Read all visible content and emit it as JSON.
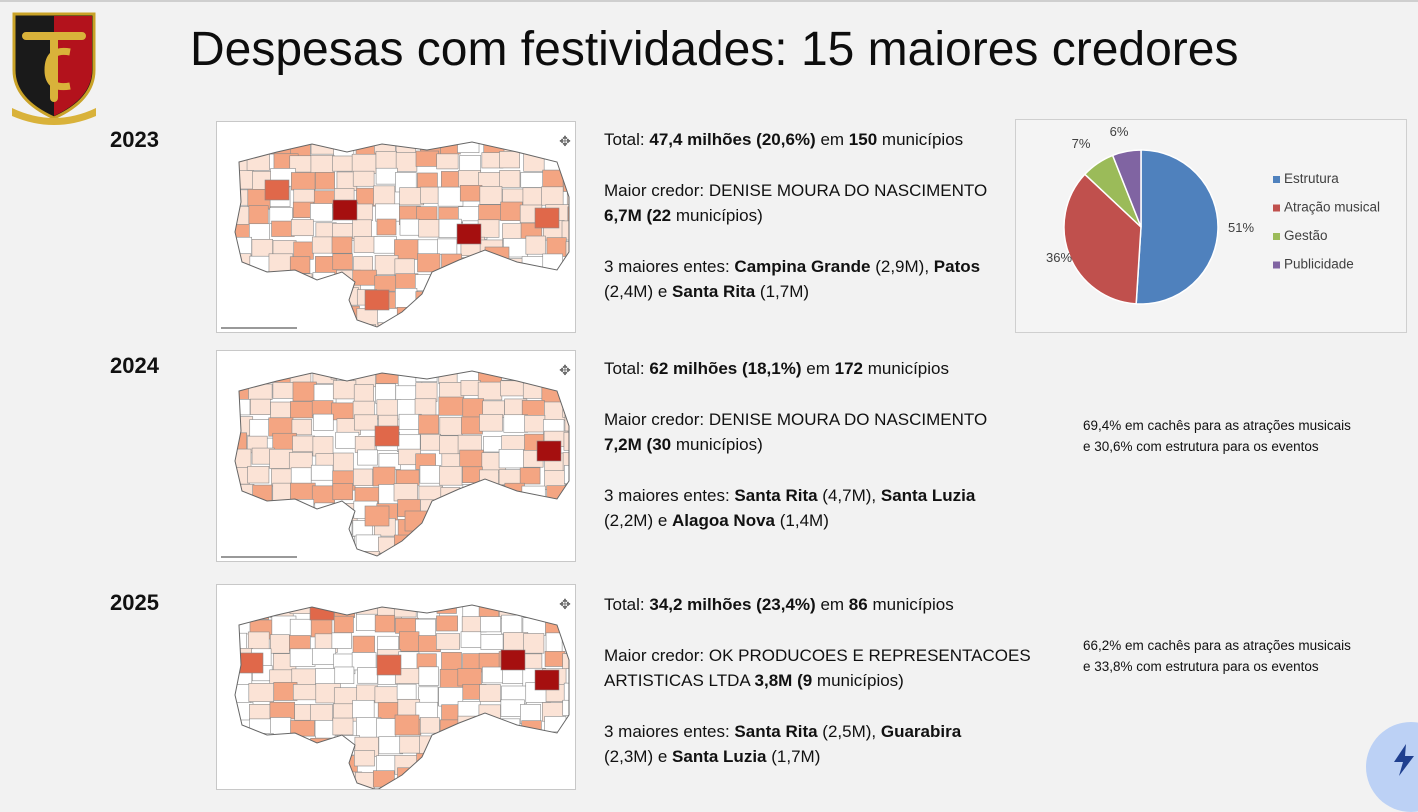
{
  "slide": {
    "title": "Despesas com festividades: 15 maiores credores"
  },
  "sections": [
    {
      "year": "2023",
      "total": {
        "label": "Total:",
        "amount": "47,4 milhões",
        "pct": "(20,6%)",
        "mid": "em",
        "count": "150",
        "unit": "municípios"
      },
      "creditor": {
        "label": "Maior credor:",
        "name": "DENISE MOURA DO NASCIMENTO",
        "amount": "6,7M",
        "count_open": "(22",
        "count_unit": "municípios)"
      },
      "entes": {
        "label": "3 maiores entes:",
        "e1": "Campina Grande",
        "v1": "(2,9M),",
        "e2": "Patos",
        "v2": "(2,4M) e",
        "e3": "Santa Rita",
        "v3": "(1,7M)"
      }
    },
    {
      "year": "2024",
      "total": {
        "label": "Total:",
        "amount": "62 milhões",
        "pct": "(18,1%)",
        "mid": "em",
        "count": "172",
        "unit": "municípios"
      },
      "creditor": {
        "label": "Maior credor:",
        "name": "DENISE MOURA DO NASCIMENTO",
        "amount": "7,2M",
        "count_open": "(30",
        "count_unit": "municípios)"
      },
      "entes": {
        "label": "3 maiores entes:",
        "e1": "Santa Rita",
        "v1": "(4,7M),",
        "e2": "Santa Luzia",
        "v2": "(2,2M) e",
        "e3": "Alagoa Nova",
        "v3": "(1,4M)"
      },
      "note": {
        "line1": "69,4% em cachês para as atrações musicais",
        "line2": "e 30,6% com estrutura para os eventos"
      }
    },
    {
      "year": "2025",
      "total": {
        "label": "Total:",
        "amount": "34,2 milhões",
        "pct": "(23,4%)",
        "mid": "em",
        "count": "86",
        "unit": "municípios"
      },
      "creditor": {
        "label": "Maior credor:",
        "name": "OK PRODUCOES E REPRESENTACOES",
        "name2": "ARTISTICAS LTDA",
        "amount": "3,8M",
        "count_open": "(9",
        "count_unit": "municípios)"
      },
      "entes": {
        "label": "3 maiores entes:",
        "e1": "Santa Rita",
        "v1": "(2,5M),",
        "e2": "Guarabira",
        "v2": "(2,3M) e",
        "e3": "Santa Luzia",
        "v3": "(1,7M)"
      },
      "note": {
        "line1": "66,2% em cachês para as atrações musicais",
        "line2": "e 33,8% com estrutura para os eventos"
      }
    }
  ],
  "chart_data": {
    "type": "pie",
    "labels": [
      "Estrutura",
      "Atração musical",
      "Gestão",
      "Publicidade"
    ],
    "values": [
      51,
      36,
      7,
      6
    ],
    "value_labels": [
      "51%",
      "36%",
      "7%",
      "6%"
    ],
    "colors": [
      "#4f81bd",
      "#c0504d",
      "#9bbb59",
      "#8064a2"
    ],
    "legend_position": "right"
  },
  "colors": {
    "choropleth_light": "#fbe3d6",
    "choropleth_mid": "#f4a582",
    "choropleth_high": "#e0684a",
    "choropleth_max": "#a50f0f"
  },
  "icons": {
    "logo": "tce-shield-logo",
    "fab": "chat-assistant-icon",
    "compass": "compass-icon"
  }
}
